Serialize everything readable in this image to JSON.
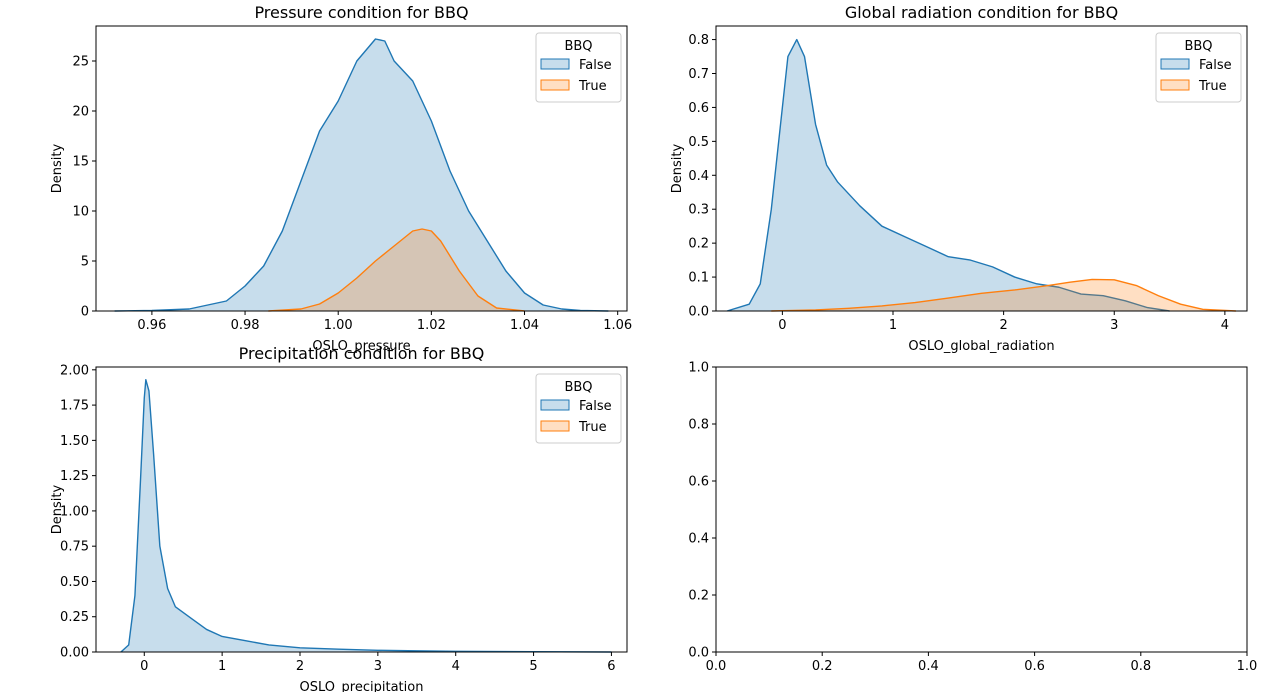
{
  "chart_data": [
    {
      "type": "area",
      "title": "Pressure condition for BBQ",
      "xlabel": "OSLO_pressure",
      "ylabel": "Density",
      "xlim": [
        0.948,
        1.062
      ],
      "ylim": [
        0,
        28.5
      ],
      "xticks": [
        0.96,
        0.98,
        1.0,
        1.02,
        1.04,
        1.06
      ],
      "xtick_labels": [
        "0.96",
        "0.98",
        "1.00",
        "1.02",
        "1.04",
        "1.06"
      ],
      "yticks": [
        0,
        5,
        10,
        15,
        20,
        25
      ],
      "ytick_labels": [
        "0",
        "5",
        "10",
        "15",
        "20",
        "25"
      ],
      "legend": {
        "title": "BBQ",
        "placement": "top-right",
        "entries": [
          "False",
          "True"
        ]
      },
      "grid": false,
      "series": [
        {
          "name": "False",
          "color": "#1f77b4",
          "x": [
            0.952,
            0.96,
            0.968,
            0.972,
            0.976,
            0.98,
            0.984,
            0.988,
            0.992,
            0.996,
            1.0,
            1.004,
            1.008,
            1.01,
            1.012,
            1.016,
            1.02,
            1.024,
            1.028,
            1.032,
            1.036,
            1.04,
            1.044,
            1.048,
            1.052,
            1.058
          ],
          "y": [
            0,
            0.05,
            0.2,
            0.6,
            1.0,
            2.5,
            4.5,
            8.0,
            13.0,
            18.0,
            21.0,
            25.0,
            27.2,
            27.0,
            25.0,
            23.0,
            19.0,
            14.0,
            10.0,
            7.0,
            4.0,
            1.8,
            0.6,
            0.2,
            0.05,
            0
          ]
        },
        {
          "name": "True",
          "color": "#ff7f0e",
          "x": [
            0.985,
            0.992,
            0.996,
            1.0,
            1.004,
            1.008,
            1.012,
            1.016,
            1.018,
            1.02,
            1.022,
            1.026,
            1.03,
            1.034,
            1.04
          ],
          "y": [
            0,
            0.2,
            0.7,
            1.8,
            3.3,
            5.0,
            6.5,
            8.0,
            8.2,
            8.0,
            7.0,
            4.0,
            1.5,
            0.3,
            0
          ]
        }
      ]
    },
    {
      "type": "area",
      "title": "Global radiation condition for BBQ",
      "xlabel": "OSLO_global_radiation",
      "ylabel": "Density",
      "xlim": [
        -0.6,
        4.2
      ],
      "ylim": [
        0,
        0.84
      ],
      "xticks": [
        0,
        1,
        2,
        3,
        4
      ],
      "xtick_labels": [
        "0",
        "1",
        "2",
        "3",
        "4"
      ],
      "yticks": [
        0.0,
        0.1,
        0.2,
        0.3,
        0.4,
        0.5,
        0.6,
        0.7,
        0.8
      ],
      "ytick_labels": [
        "0.0",
        "0.1",
        "0.2",
        "0.3",
        "0.4",
        "0.5",
        "0.6",
        "0.7",
        "0.8"
      ],
      "legend": {
        "title": "BBQ",
        "placement": "top-right",
        "entries": [
          "False",
          "True"
        ]
      },
      "grid": false,
      "series": [
        {
          "name": "False",
          "color": "#1f77b4",
          "x": [
            -0.5,
            -0.3,
            -0.2,
            -0.1,
            0.0,
            0.05,
            0.13,
            0.2,
            0.3,
            0.4,
            0.5,
            0.7,
            0.9,
            1.1,
            1.3,
            1.5,
            1.7,
            1.9,
            2.1,
            2.3,
            2.5,
            2.7,
            2.9,
            3.1,
            3.3,
            3.5
          ],
          "y": [
            0,
            0.02,
            0.08,
            0.3,
            0.6,
            0.75,
            0.8,
            0.75,
            0.55,
            0.43,
            0.38,
            0.31,
            0.25,
            0.22,
            0.19,
            0.16,
            0.15,
            0.13,
            0.1,
            0.08,
            0.07,
            0.05,
            0.045,
            0.03,
            0.01,
            0
          ]
        },
        {
          "name": "True",
          "color": "#ff7f0e",
          "x": [
            -0.1,
            0.3,
            0.6,
            0.9,
            1.2,
            1.5,
            1.8,
            2.1,
            2.4,
            2.6,
            2.8,
            3.0,
            3.2,
            3.4,
            3.6,
            3.8,
            4.1
          ],
          "y": [
            0,
            0.003,
            0.008,
            0.015,
            0.025,
            0.038,
            0.052,
            0.062,
            0.075,
            0.085,
            0.093,
            0.092,
            0.075,
            0.045,
            0.02,
            0.005,
            0
          ]
        }
      ]
    },
    {
      "type": "area",
      "title": "Precipitation condition for BBQ",
      "xlabel": "OSLO_precipitation",
      "ylabel": "Density",
      "xlim": [
        -0.62,
        6.2
      ],
      "ylim": [
        0,
        2.02
      ],
      "xticks": [
        0,
        1,
        2,
        3,
        4,
        5,
        6
      ],
      "xtick_labels": [
        "0",
        "1",
        "2",
        "3",
        "4",
        "5",
        "6"
      ],
      "yticks": [
        0.0,
        0.25,
        0.5,
        0.75,
        1.0,
        1.25,
        1.5,
        1.75,
        2.0
      ],
      "ytick_labels": [
        "0.00",
        "0.25",
        "0.50",
        "0.75",
        "1.00",
        "1.25",
        "1.50",
        "1.75",
        "2.00"
      ],
      "legend": {
        "title": "BBQ",
        "placement": "top-right",
        "entries": [
          "False",
          "True"
        ]
      },
      "grid": false,
      "series": [
        {
          "name": "False",
          "color": "#1f77b4",
          "x": [
            -0.3,
            -0.2,
            -0.12,
            -0.05,
            0.0,
            0.02,
            0.06,
            0.12,
            0.2,
            0.3,
            0.4,
            0.6,
            0.8,
            1.0,
            1.3,
            1.6,
            2.0,
            2.5,
            3.0,
            3.5,
            4.0,
            5.0,
            6.0
          ],
          "y": [
            0,
            0.05,
            0.4,
            1.2,
            1.8,
            1.93,
            1.85,
            1.4,
            0.75,
            0.45,
            0.32,
            0.24,
            0.16,
            0.11,
            0.08,
            0.05,
            0.03,
            0.02,
            0.012,
            0.008,
            0.005,
            0.002,
            0
          ]
        },
        {
          "name": "True",
          "color": "#ff7f0e",
          "x": [],
          "y": []
        }
      ]
    },
    {
      "type": "line",
      "title": "",
      "xlabel": "",
      "ylabel": "",
      "xlim": [
        0,
        1
      ],
      "ylim": [
        0,
        1
      ],
      "xticks": [
        0.0,
        0.2,
        0.4,
        0.6,
        0.8,
        1.0
      ],
      "xtick_labels": [
        "0.0",
        "0.2",
        "0.4",
        "0.6",
        "0.8",
        "1.0"
      ],
      "yticks": [
        0.0,
        0.2,
        0.4,
        0.6,
        0.8,
        1.0
      ],
      "ytick_labels": [
        "0.0",
        "0.2",
        "0.4",
        "0.6",
        "0.8",
        "1.0"
      ],
      "legend": null,
      "grid": false,
      "series": []
    }
  ]
}
